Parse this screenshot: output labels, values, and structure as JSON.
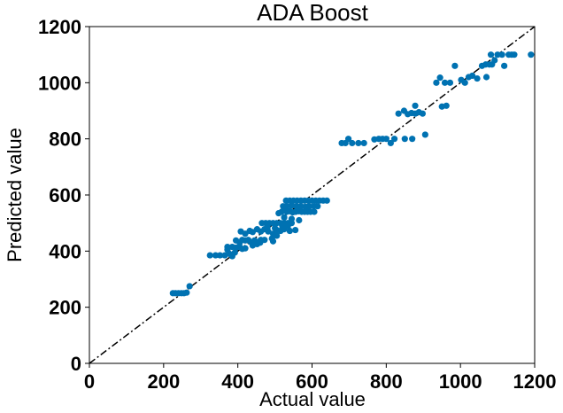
{
  "chart_data": {
    "type": "scatter",
    "title": "ADA Boost",
    "xlabel": "Actual value",
    "ylabel": "Predicted value",
    "xlim": [
      0,
      1200
    ],
    "ylim": [
      0,
      1200
    ],
    "xticks": [
      "0",
      "200",
      "400",
      "600",
      "800",
      "1000",
      "1200"
    ],
    "yticks": [
      "0",
      "200",
      "400",
      "600",
      "800",
      "1000",
      "1200"
    ],
    "grid": false,
    "point_color": "#0072b2",
    "reference_line": {
      "style": "dash-dot",
      "color": "#000000",
      "from": [
        0,
        0
      ],
      "to": [
        1200,
        1200
      ]
    },
    "points": [
      [
        225,
        250
      ],
      [
        232,
        250
      ],
      [
        240,
        250
      ],
      [
        248,
        250
      ],
      [
        255,
        250
      ],
      [
        262,
        252
      ],
      [
        270,
        275
      ],
      [
        325,
        385
      ],
      [
        340,
        385
      ],
      [
        352,
        385
      ],
      [
        365,
        385
      ],
      [
        372,
        405
      ],
      [
        378,
        390
      ],
      [
        385,
        382
      ],
      [
        392,
        395
      ],
      [
        372,
        415
      ],
      [
        385,
        415
      ],
      [
        395,
        412
      ],
      [
        405,
        415
      ],
      [
        412,
        408
      ],
      [
        420,
        410
      ],
      [
        395,
        438
      ],
      [
        405,
        430
      ],
      [
        412,
        440
      ],
      [
        420,
        438
      ],
      [
        428,
        440
      ],
      [
        435,
        432
      ],
      [
        445,
        438
      ],
      [
        455,
        432
      ],
      [
        462,
        440
      ],
      [
        408,
        470
      ],
      [
        420,
        462
      ],
      [
        432,
        472
      ],
      [
        440,
        468
      ],
      [
        452,
        478
      ],
      [
        462,
        470
      ],
      [
        472,
        478
      ],
      [
        482,
        470
      ],
      [
        495,
        462
      ],
      [
        505,
        475
      ],
      [
        515,
        472
      ],
      [
        525,
        478
      ],
      [
        540,
        472
      ],
      [
        440,
        420
      ],
      [
        452,
        425
      ],
      [
        472,
        440
      ],
      [
        492,
        445
      ],
      [
        460,
        430
      ],
      [
        465,
        500
      ],
      [
        475,
        500
      ],
      [
        485,
        500
      ],
      [
        495,
        500
      ],
      [
        505,
        500
      ],
      [
        515,
        500
      ],
      [
        525,
        500
      ],
      [
        535,
        500
      ],
      [
        545,
        500
      ],
      [
        480,
        485
      ],
      [
        500,
        482
      ],
      [
        520,
        488
      ],
      [
        535,
        490
      ],
      [
        510,
        535
      ],
      [
        518,
        540
      ],
      [
        525,
        545
      ],
      [
        532,
        540
      ],
      [
        540,
        542
      ],
      [
        548,
        538
      ],
      [
        556,
        540
      ],
      [
        564,
        542
      ],
      [
        572,
        540
      ],
      [
        580,
        540
      ],
      [
        588,
        540
      ],
      [
        596,
        540
      ],
      [
        606,
        540
      ],
      [
        522,
        560
      ],
      [
        532,
        560
      ],
      [
        545,
        562
      ],
      [
        558,
        560
      ],
      [
        570,
        560
      ],
      [
        582,
        558
      ],
      [
        592,
        560
      ],
      [
        605,
        560
      ],
      [
        615,
        560
      ],
      [
        530,
        580
      ],
      [
        540,
        580
      ],
      [
        550,
        580
      ],
      [
        560,
        580
      ],
      [
        570,
        580
      ],
      [
        580,
        580
      ],
      [
        590,
        580
      ],
      [
        600,
        580
      ],
      [
        610,
        580
      ],
      [
        620,
        580
      ],
      [
        630,
        580
      ],
      [
        640,
        580
      ],
      [
        525,
        520
      ],
      [
        545,
        515
      ],
      [
        565,
        510
      ],
      [
        505,
        455
      ],
      [
        495,
        435
      ],
      [
        555,
        475
      ],
      [
        680,
        785
      ],
      [
        690,
        785
      ],
      [
        698,
        800
      ],
      [
        708,
        785
      ],
      [
        725,
        785
      ],
      [
        740,
        785
      ],
      [
        768,
        798
      ],
      [
        780,
        800
      ],
      [
        790,
        800
      ],
      [
        800,
        800
      ],
      [
        812,
        785
      ],
      [
        822,
        800
      ],
      [
        850,
        800
      ],
      [
        870,
        800
      ],
      [
        905,
        815
      ],
      [
        833,
        890
      ],
      [
        848,
        900
      ],
      [
        858,
        888
      ],
      [
        868,
        892
      ],
      [
        878,
        890
      ],
      [
        888,
        895
      ],
      [
        898,
        890
      ],
      [
        878,
        918
      ],
      [
        935,
        1000
      ],
      [
        945,
        1018
      ],
      [
        958,
        1000
      ],
      [
        972,
        1000
      ],
      [
        985,
        1060
      ],
      [
        950,
        915
      ],
      [
        962,
        918
      ],
      [
        1002,
        1010
      ],
      [
        1012,
        1000
      ],
      [
        1022,
        1020
      ],
      [
        1032,
        1025
      ],
      [
        1045,
        1015
      ],
      [
        1058,
        1060
      ],
      [
        1068,
        1065
      ],
      [
        1078,
        1065
      ],
      [
        1085,
        1065
      ],
      [
        1070,
        1020
      ],
      [
        1092,
        1080
      ],
      [
        1100,
        1100
      ],
      [
        1112,
        1100
      ],
      [
        1118,
        1060
      ],
      [
        1130,
        1100
      ],
      [
        1138,
        1100
      ],
      [
        1145,
        1100
      ],
      [
        1190,
        1100
      ],
      [
        1082,
        1100
      ]
    ]
  }
}
